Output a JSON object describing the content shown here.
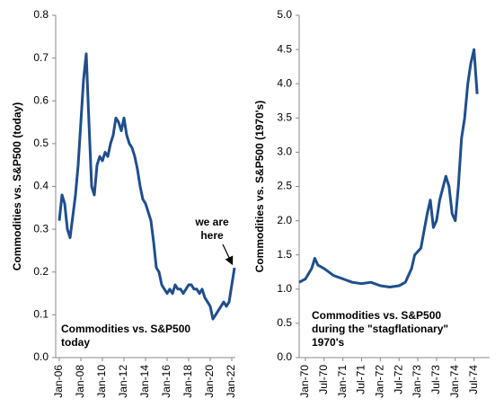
{
  "chart_data": [
    {
      "type": "line",
      "y_label": "Commodities vs. S&P500 (today)",
      "caption_lines": [
        "Commodities vs. S&P500",
        "today"
      ],
      "annotation_lines": [
        "we are",
        "here"
      ],
      "xlim": [
        "Sep-05",
        "May-22"
      ],
      "xticks": [
        "Jan-06",
        "Jan-08",
        "Jan-10",
        "Jan-12",
        "Jan-14",
        "Jan-16",
        "Jan-18",
        "Jan-20",
        "Jan-22"
      ],
      "ylim": [
        0,
        0.8
      ],
      "yticks": [
        {
          "value": 0,
          "label": "0.0"
        },
        0.1,
        0.2,
        0.3,
        0.4,
        0.5,
        0.6,
        0.7,
        0.8
      ],
      "x": [
        "Jan-06",
        "Apr-06",
        "Jul-06",
        "Oct-06",
        "Jan-07",
        "Apr-07",
        "Jul-07",
        "Oct-07",
        "Jan-08",
        "Apr-08",
        "Jul-08",
        "Oct-08",
        "Jan-09",
        "Apr-09",
        "Jul-09",
        "Oct-09",
        "Jan-10",
        "Apr-10",
        "Jul-10",
        "Oct-10",
        "Jan-11",
        "Apr-11",
        "Jul-11",
        "Oct-11",
        "Jan-12",
        "Apr-12",
        "Jul-12",
        "Oct-12",
        "Jan-13",
        "Apr-13",
        "Jul-13",
        "Oct-13",
        "Jan-14",
        "Apr-14",
        "Jul-14",
        "Oct-14",
        "Jan-15",
        "Apr-15",
        "Jul-15",
        "Oct-15",
        "Jan-16",
        "Apr-16",
        "Jul-16",
        "Oct-16",
        "Jan-17",
        "Apr-17",
        "Jul-17",
        "Oct-17",
        "Jan-18",
        "Apr-18",
        "Jul-18",
        "Oct-18",
        "Jan-19",
        "Apr-19",
        "Jul-19",
        "Oct-19",
        "Jan-20",
        "Apr-20",
        "Jul-20",
        "Oct-20",
        "Jan-21",
        "Apr-21",
        "Jul-21",
        "Oct-21",
        "Jan-22",
        "Apr-22"
      ],
      "series": [
        {
          "color": "#1f4e8c",
          "values": [
            0.32,
            0.38,
            0.36,
            0.3,
            0.28,
            0.33,
            0.38,
            0.45,
            0.55,
            0.65,
            0.71,
            0.55,
            0.4,
            0.38,
            0.45,
            0.47,
            0.46,
            0.48,
            0.47,
            0.5,
            0.52,
            0.56,
            0.55,
            0.53,
            0.56,
            0.52,
            0.5,
            0.49,
            0.47,
            0.44,
            0.4,
            0.37,
            0.36,
            0.34,
            0.32,
            0.27,
            0.21,
            0.2,
            0.17,
            0.16,
            0.15,
            0.16,
            0.15,
            0.17,
            0.16,
            0.16,
            0.15,
            0.16,
            0.17,
            0.17,
            0.16,
            0.16,
            0.15,
            0.16,
            0.14,
            0.13,
            0.12,
            0.09,
            0.1,
            0.11,
            0.12,
            0.13,
            0.12,
            0.13,
            0.17,
            0.21
          ]
        }
      ]
    },
    {
      "type": "line",
      "y_label": "Commodities vs. S&P500 (1970's)",
      "caption_lines": [
        "Commodities vs. S&P500",
        "during the \"stagflationary\"",
        "1970's"
      ],
      "xlim": [
        "Nov-69",
        "Dec-74"
      ],
      "xticks": [
        "Jan-70",
        "Jul-70",
        "Jan-71",
        "Jul-71",
        "Jan-72",
        "Jul-72",
        "Jan-73",
        "Jul-73",
        "Jan-74",
        "Jul-74"
      ],
      "ylim": [
        0,
        5
      ],
      "yticks": [
        {
          "value": 0,
          "label": "0.0"
        },
        0.5,
        {
          "value": 1,
          "label": "1.0"
        },
        1.5,
        {
          "value": 2,
          "label": "2.0"
        },
        2.5,
        {
          "value": 3,
          "label": "3.0"
        },
        3.5,
        {
          "value": 4,
          "label": "4.0"
        },
        4.5,
        {
          "value": 5,
          "label": "5.0"
        }
      ],
      "x": [
        "Nov-69",
        "Jan-70",
        "Mar-70",
        "Apr-70",
        "May-70",
        "Jul-70",
        "Oct-70",
        "Jan-71",
        "Apr-71",
        "Jul-71",
        "Oct-71",
        "Jan-72",
        "Apr-72",
        "Jul-72",
        "Sep-72",
        "Nov-72",
        "Dec-72",
        "Feb-73",
        "Apr-73",
        "May-73",
        "Jun-73",
        "Jul-73",
        "Aug-73",
        "Oct-73",
        "Nov-73",
        "Dec-73",
        "Jan-74",
        "Feb-74",
        "Mar-74",
        "Apr-74",
        "May-74",
        "Jun-74",
        "Jul-74",
        "Aug-74"
      ],
      "series": [
        {
          "color": "#1f4e8c",
          "values": [
            1.1,
            1.15,
            1.3,
            1.45,
            1.35,
            1.3,
            1.2,
            1.15,
            1.1,
            1.08,
            1.1,
            1.05,
            1.03,
            1.05,
            1.1,
            1.3,
            1.5,
            1.6,
            2.1,
            2.3,
            1.9,
            2.0,
            2.3,
            2.65,
            2.5,
            2.1,
            2.0,
            2.5,
            3.2,
            3.5,
            4.0,
            4.3,
            4.5,
            3.85
          ]
        }
      ]
    }
  ]
}
